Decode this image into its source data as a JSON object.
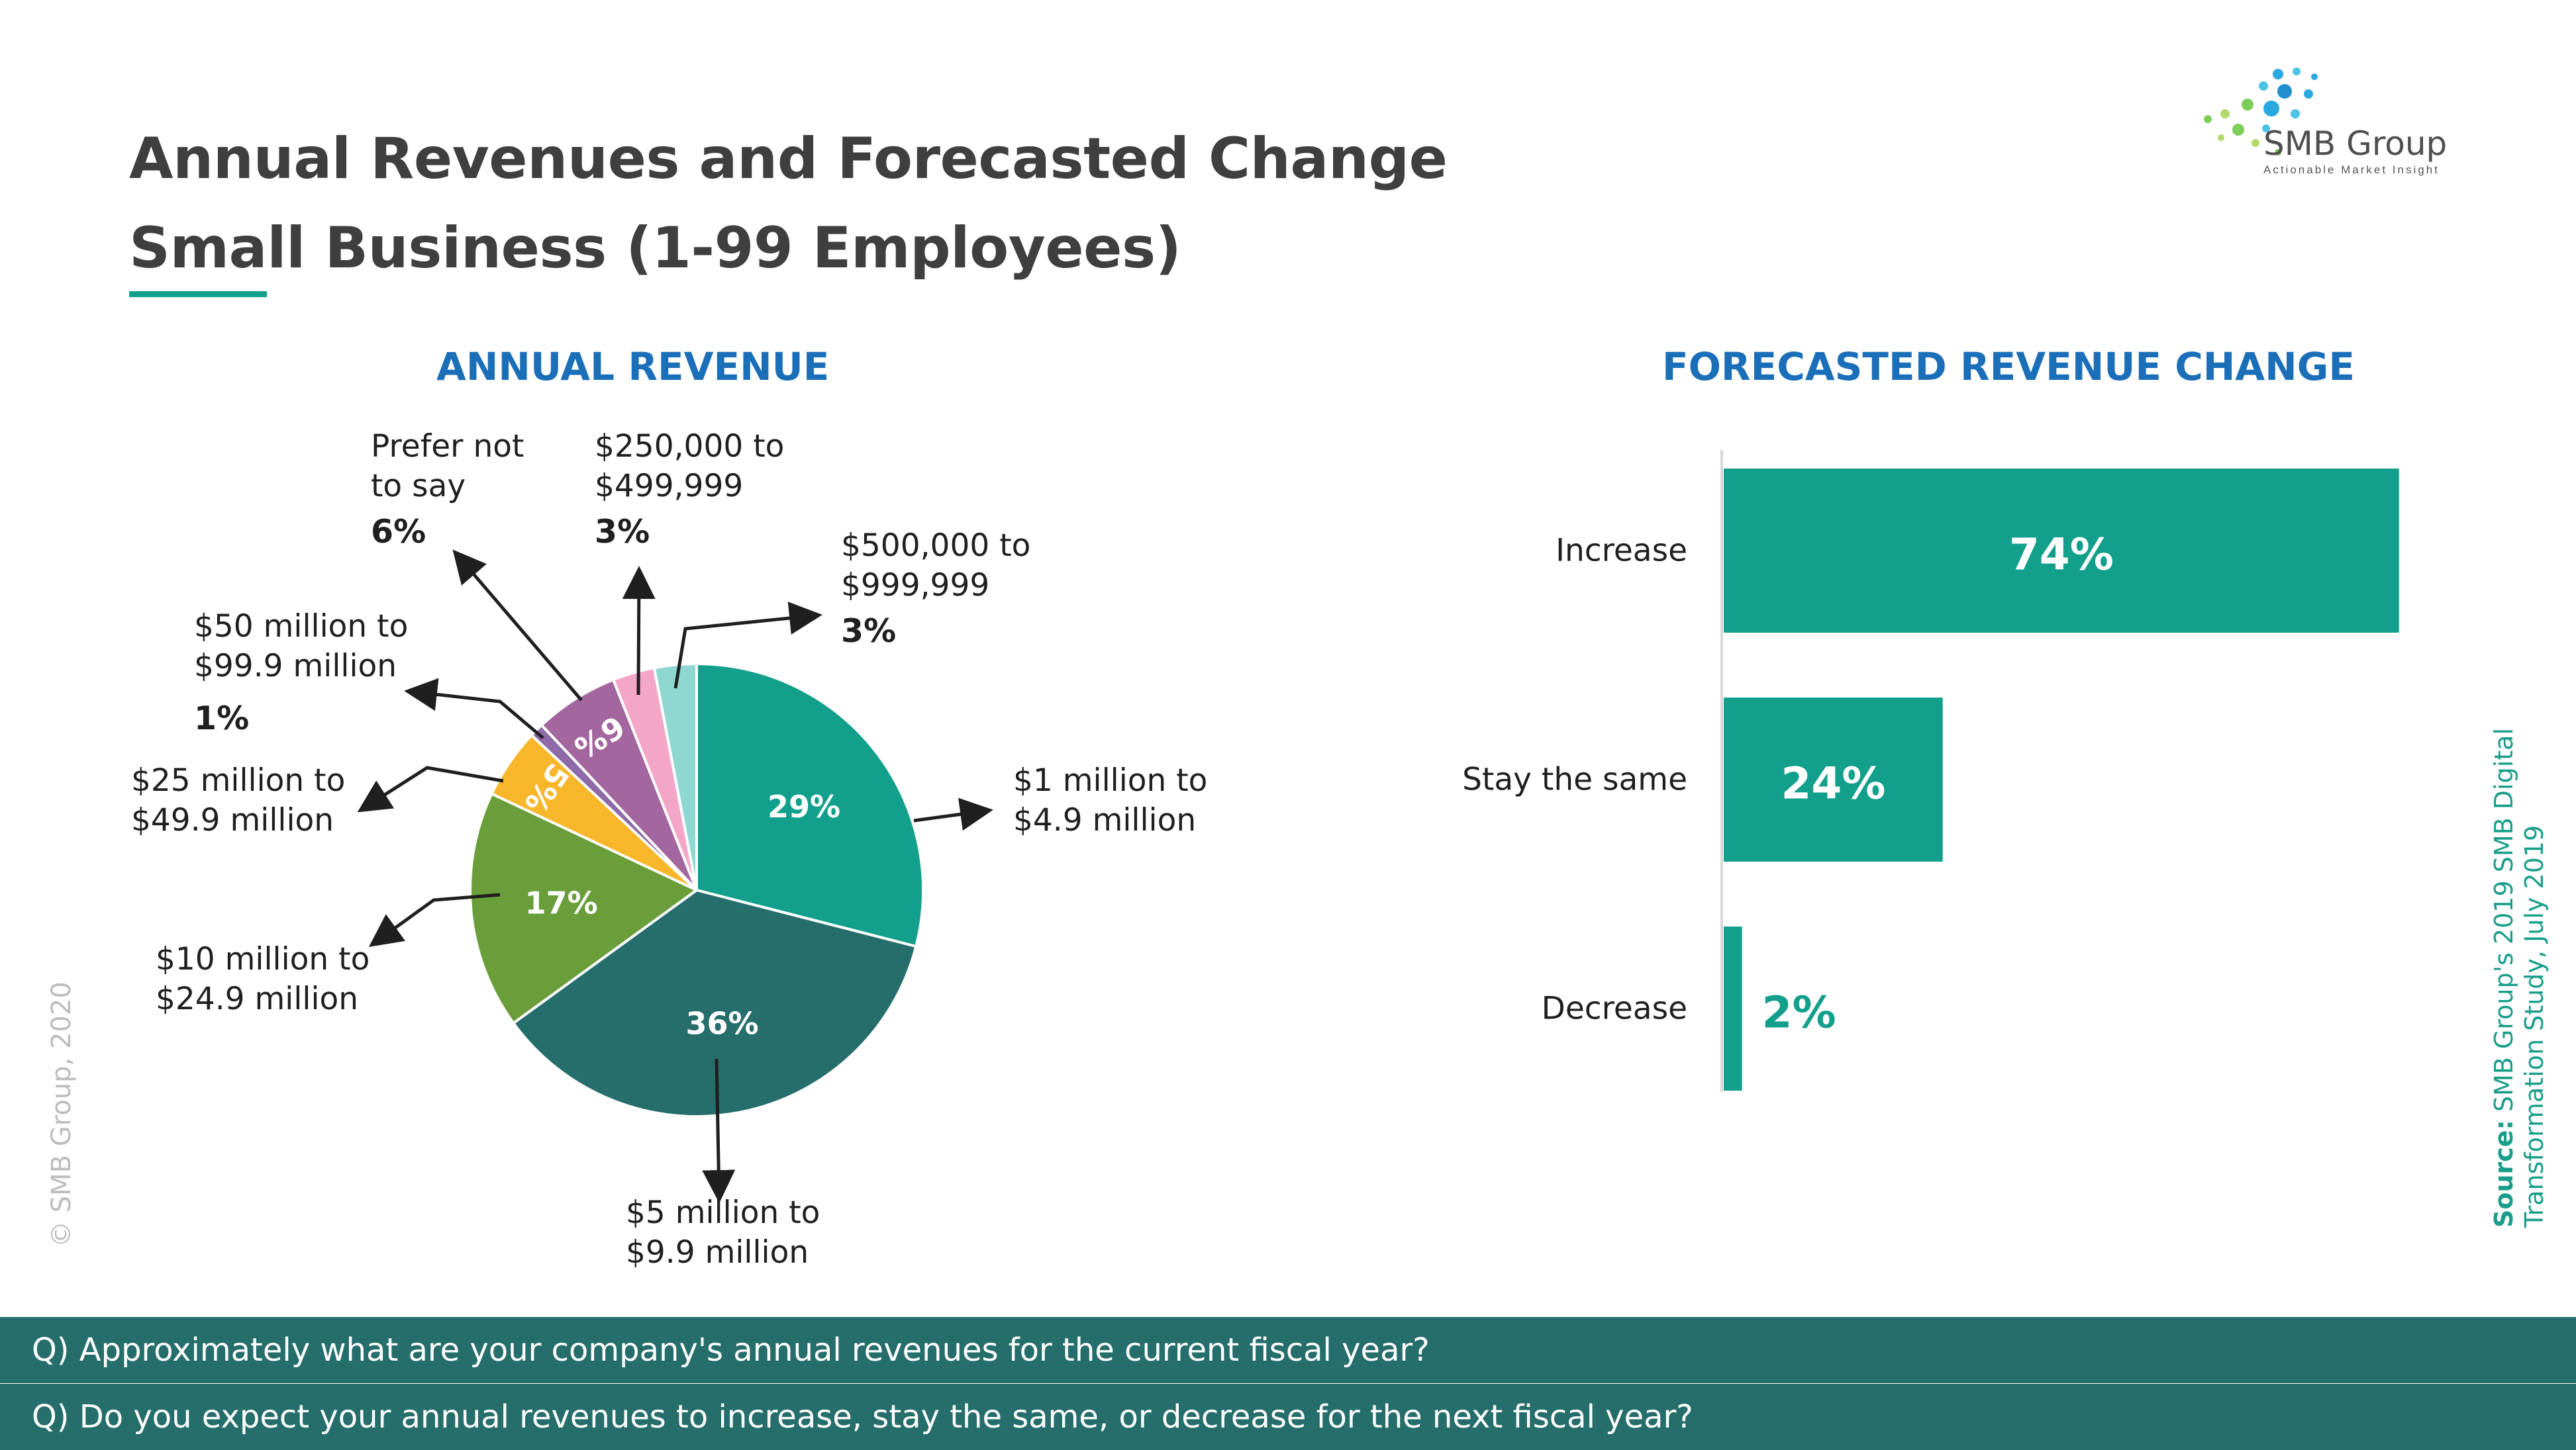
{
  "title_line1": "Annual Revenues and Forecasted Change",
  "title_line2": "Small Business (1-99 Employees)",
  "brand": {
    "name": "SMB Group",
    "tagline": "Actionable Market Insight",
    "logo_colors": [
      "#29a9e0",
      "#4cc3e6",
      "#7ccd5a",
      "#b5d96a",
      "#1f8fd0"
    ]
  },
  "copyright": "© SMB Group, 2020",
  "source": {
    "label": "Source:",
    "line1": "SMB Group's 2019 SMB Digital",
    "line2": "Transformation Study, July 2019"
  },
  "questions": [
    "Q) Approximately what are your company's annual revenues for the current fiscal year?",
    "Q) Do you expect your annual revenues to increase, stay the same, or decrease for the next fiscal year?"
  ],
  "colors": {
    "accent": "#12a08c",
    "heading": "#1b6fb8",
    "question_bar": "#256e6b"
  },
  "chart_data": [
    {
      "type": "pie",
      "title": "ANNUAL REVENUE",
      "slices": [
        {
          "lines": [
            "$1 million to",
            "$4.9 million"
          ],
          "value": 29,
          "label": "29%",
          "color": "#12a08c",
          "inner_label": true,
          "outer_pct": ""
        },
        {
          "lines": [
            "$5 million to",
            "$9.9 million"
          ],
          "value": 36,
          "label": "36%",
          "color": "#256e6b",
          "inner_label": true,
          "outer_pct": ""
        },
        {
          "lines": [
            "$10 million to",
            "$24.9 million"
          ],
          "value": 17,
          "label": "17%",
          "color": "#6a9e3a",
          "inner_label": true,
          "outer_pct": ""
        },
        {
          "lines": [
            "$25 million to",
            "$49.9 million"
          ],
          "value": 5,
          "label": "5%",
          "color": "#f8b62b",
          "inner_label": true,
          "outer_pct": ""
        },
        {
          "lines": [
            "$50 million to",
            "$99.9 million"
          ],
          "value": 1,
          "label": "1%",
          "color": "#8f6aa8",
          "inner_label": false,
          "outer_pct": "1%"
        },
        {
          "lines": [
            "Prefer not",
            "to say"
          ],
          "value": 6,
          "label": "6%",
          "color": "#a3669f",
          "inner_label": true,
          "outer_pct": "6%"
        },
        {
          "lines": [
            "$250,000 to",
            "$499,999"
          ],
          "value": 3,
          "label": "3%",
          "color": "#f4a6c8",
          "inner_label": false,
          "outer_pct": "3%"
        },
        {
          "lines": [
            "$500,000 to",
            "$999,999"
          ],
          "value": 3,
          "label": "3%",
          "color": "#8fd8d2",
          "inner_label": false,
          "outer_pct": "3%"
        }
      ]
    },
    {
      "type": "bar",
      "orientation": "horizontal",
      "title": "FORECASTED REVENUE CHANGE",
      "categories": [
        "Increase",
        "Stay the same",
        "Decrease"
      ],
      "values": [
        74,
        24,
        2
      ],
      "labels": [
        "74%",
        "24%",
        "2%"
      ],
      "color": "#12a08c"
    }
  ]
}
